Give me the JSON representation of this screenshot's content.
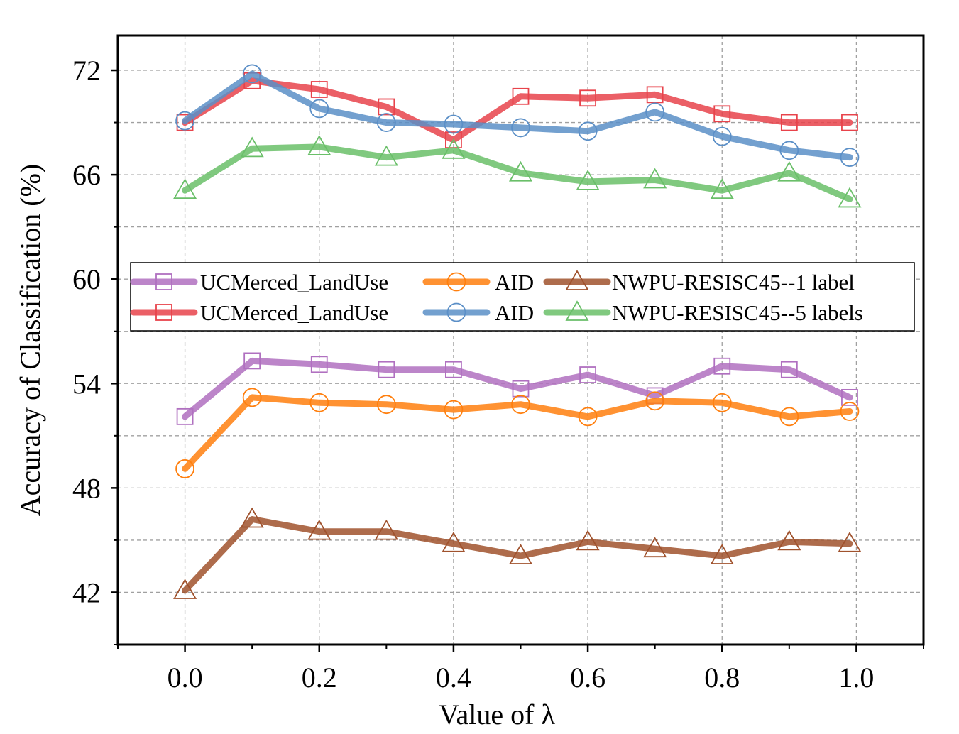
{
  "chart_data": {
    "type": "line",
    "xlabel": "Value of  λ",
    "ylabel": "Accuracy of Classification (%)",
    "xlim": [
      -0.1,
      1.1
    ],
    "ylim": [
      39,
      74
    ],
    "xticks": [
      0.0,
      0.2,
      0.4,
      0.6,
      0.8,
      1.0
    ],
    "xtick_labels": [
      "0.0",
      "0.2",
      "0.4",
      "0.6",
      "0.8",
      "1.0"
    ],
    "yticks": [
      42,
      48,
      54,
      60,
      66,
      72
    ],
    "ytick_labels": [
      "42",
      "48",
      "54",
      "60",
      "66",
      "72"
    ],
    "grid": true,
    "legend_position": "center",
    "x": [
      0.0,
      0.1,
      0.2,
      0.3,
      0.4,
      0.5,
      0.6,
      0.7,
      0.8,
      0.9,
      0.99
    ],
    "series": [
      {
        "name": "UCMerced_LandUse",
        "color": "#b070c0",
        "marker": "square",
        "values": [
          52.1,
          55.3,
          55.1,
          54.8,
          54.8,
          53.7,
          54.5,
          53.3,
          55.0,
          54.8,
          53.2
        ]
      },
      {
        "name": "AID",
        "color": "#ff7f0e",
        "marker": "circle",
        "values": [
          49.1,
          53.2,
          52.9,
          52.8,
          52.5,
          52.8,
          52.1,
          53.0,
          52.9,
          52.1,
          52.4
        ]
      },
      {
        "name": "NWPU-RESISC45--1 label",
        "color": "#a0522d",
        "marker": "triangle",
        "values": [
          42.1,
          46.2,
          45.5,
          45.5,
          44.8,
          44.1,
          44.9,
          44.5,
          44.1,
          44.9,
          44.8
        ]
      },
      {
        "name": "UCMerced_LandUse",
        "color": "#e8434b",
        "marker": "square",
        "values": [
          69.0,
          71.4,
          70.9,
          69.9,
          68.0,
          70.5,
          70.4,
          70.6,
          69.5,
          69.0,
          69.0
        ]
      },
      {
        "name": "AID",
        "color": "#5b8fc7",
        "marker": "circle",
        "values": [
          69.1,
          71.8,
          69.8,
          69.0,
          68.9,
          68.7,
          68.5,
          69.6,
          68.2,
          67.4,
          67.0
        ]
      },
      {
        "name": "NWPU-RESISC45--5 labels",
        "color": "#6abf69",
        "marker": "triangle",
        "values": [
          65.1,
          67.5,
          67.6,
          67.0,
          67.4,
          66.1,
          65.6,
          65.7,
          65.1,
          66.1,
          64.6
        ]
      }
    ]
  }
}
